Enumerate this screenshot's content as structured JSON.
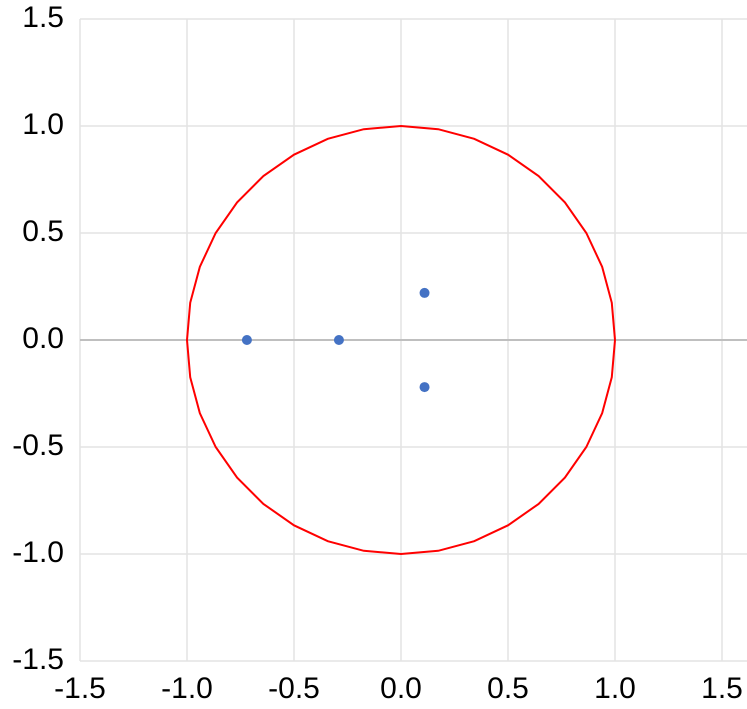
{
  "chart_data": {
    "type": "scatter",
    "xlim": [
      -1.5,
      1.5
    ],
    "ylim": [
      -1.5,
      1.5
    ],
    "xticks": [
      -1.5,
      {
        "value": -1,
        "label": "-1.0"
      },
      -0.5,
      {
        "value": 0,
        "label": "0.0"
      },
      0.5,
      {
        "value": 1,
        "label": "1.0"
      },
      1.5
    ],
    "yticks": [
      -1.5,
      {
        "value": -1,
        "label": "-1.0"
      },
      -0.5,
      {
        "value": 0,
        "label": "0.0"
      },
      0.5,
      {
        "value": 1,
        "label": "1.0"
      },
      1.5
    ],
    "grid": true,
    "grid_color": "#e3e3e3",
    "zero_line_color": "#bfbfbf",
    "series": [
      {
        "color": "#ff0000",
        "style": "line",
        "x": [
          1,
          0.985,
          0.94,
          0.866,
          0.766,
          0.643,
          0.5,
          0.342,
          0.174,
          0,
          -0.174,
          -0.342,
          -0.5,
          -0.643,
          -0.766,
          -0.866,
          -0.94,
          -0.985,
          -1,
          -0.985,
          -0.94,
          -0.866,
          -0.766,
          -0.643,
          -0.5,
          -0.342,
          -0.174,
          0,
          0.174,
          0.342,
          0.5,
          0.643,
          0.766,
          0.866,
          0.94,
          0.985,
          1
        ],
        "values": [
          0,
          0.174,
          0.342,
          0.5,
          0.643,
          0.766,
          0.866,
          0.94,
          0.985,
          1,
          0.985,
          0.94,
          0.866,
          0.766,
          0.643,
          0.5,
          0.342,
          0.174,
          0,
          -0.174,
          -0.342,
          -0.5,
          -0.643,
          -0.766,
          -0.866,
          -0.94,
          -0.985,
          -1,
          -0.985,
          -0.94,
          -0.866,
          -0.766,
          -0.643,
          -0.5,
          -0.342,
          -0.174,
          0
        ]
      },
      {
        "color": "#4472c4",
        "style": "markers",
        "x": [
          -0.72,
          -0.29,
          0.11,
          0.11
        ],
        "values": [
          0,
          0,
          0.22,
          -0.22
        ]
      }
    ]
  }
}
